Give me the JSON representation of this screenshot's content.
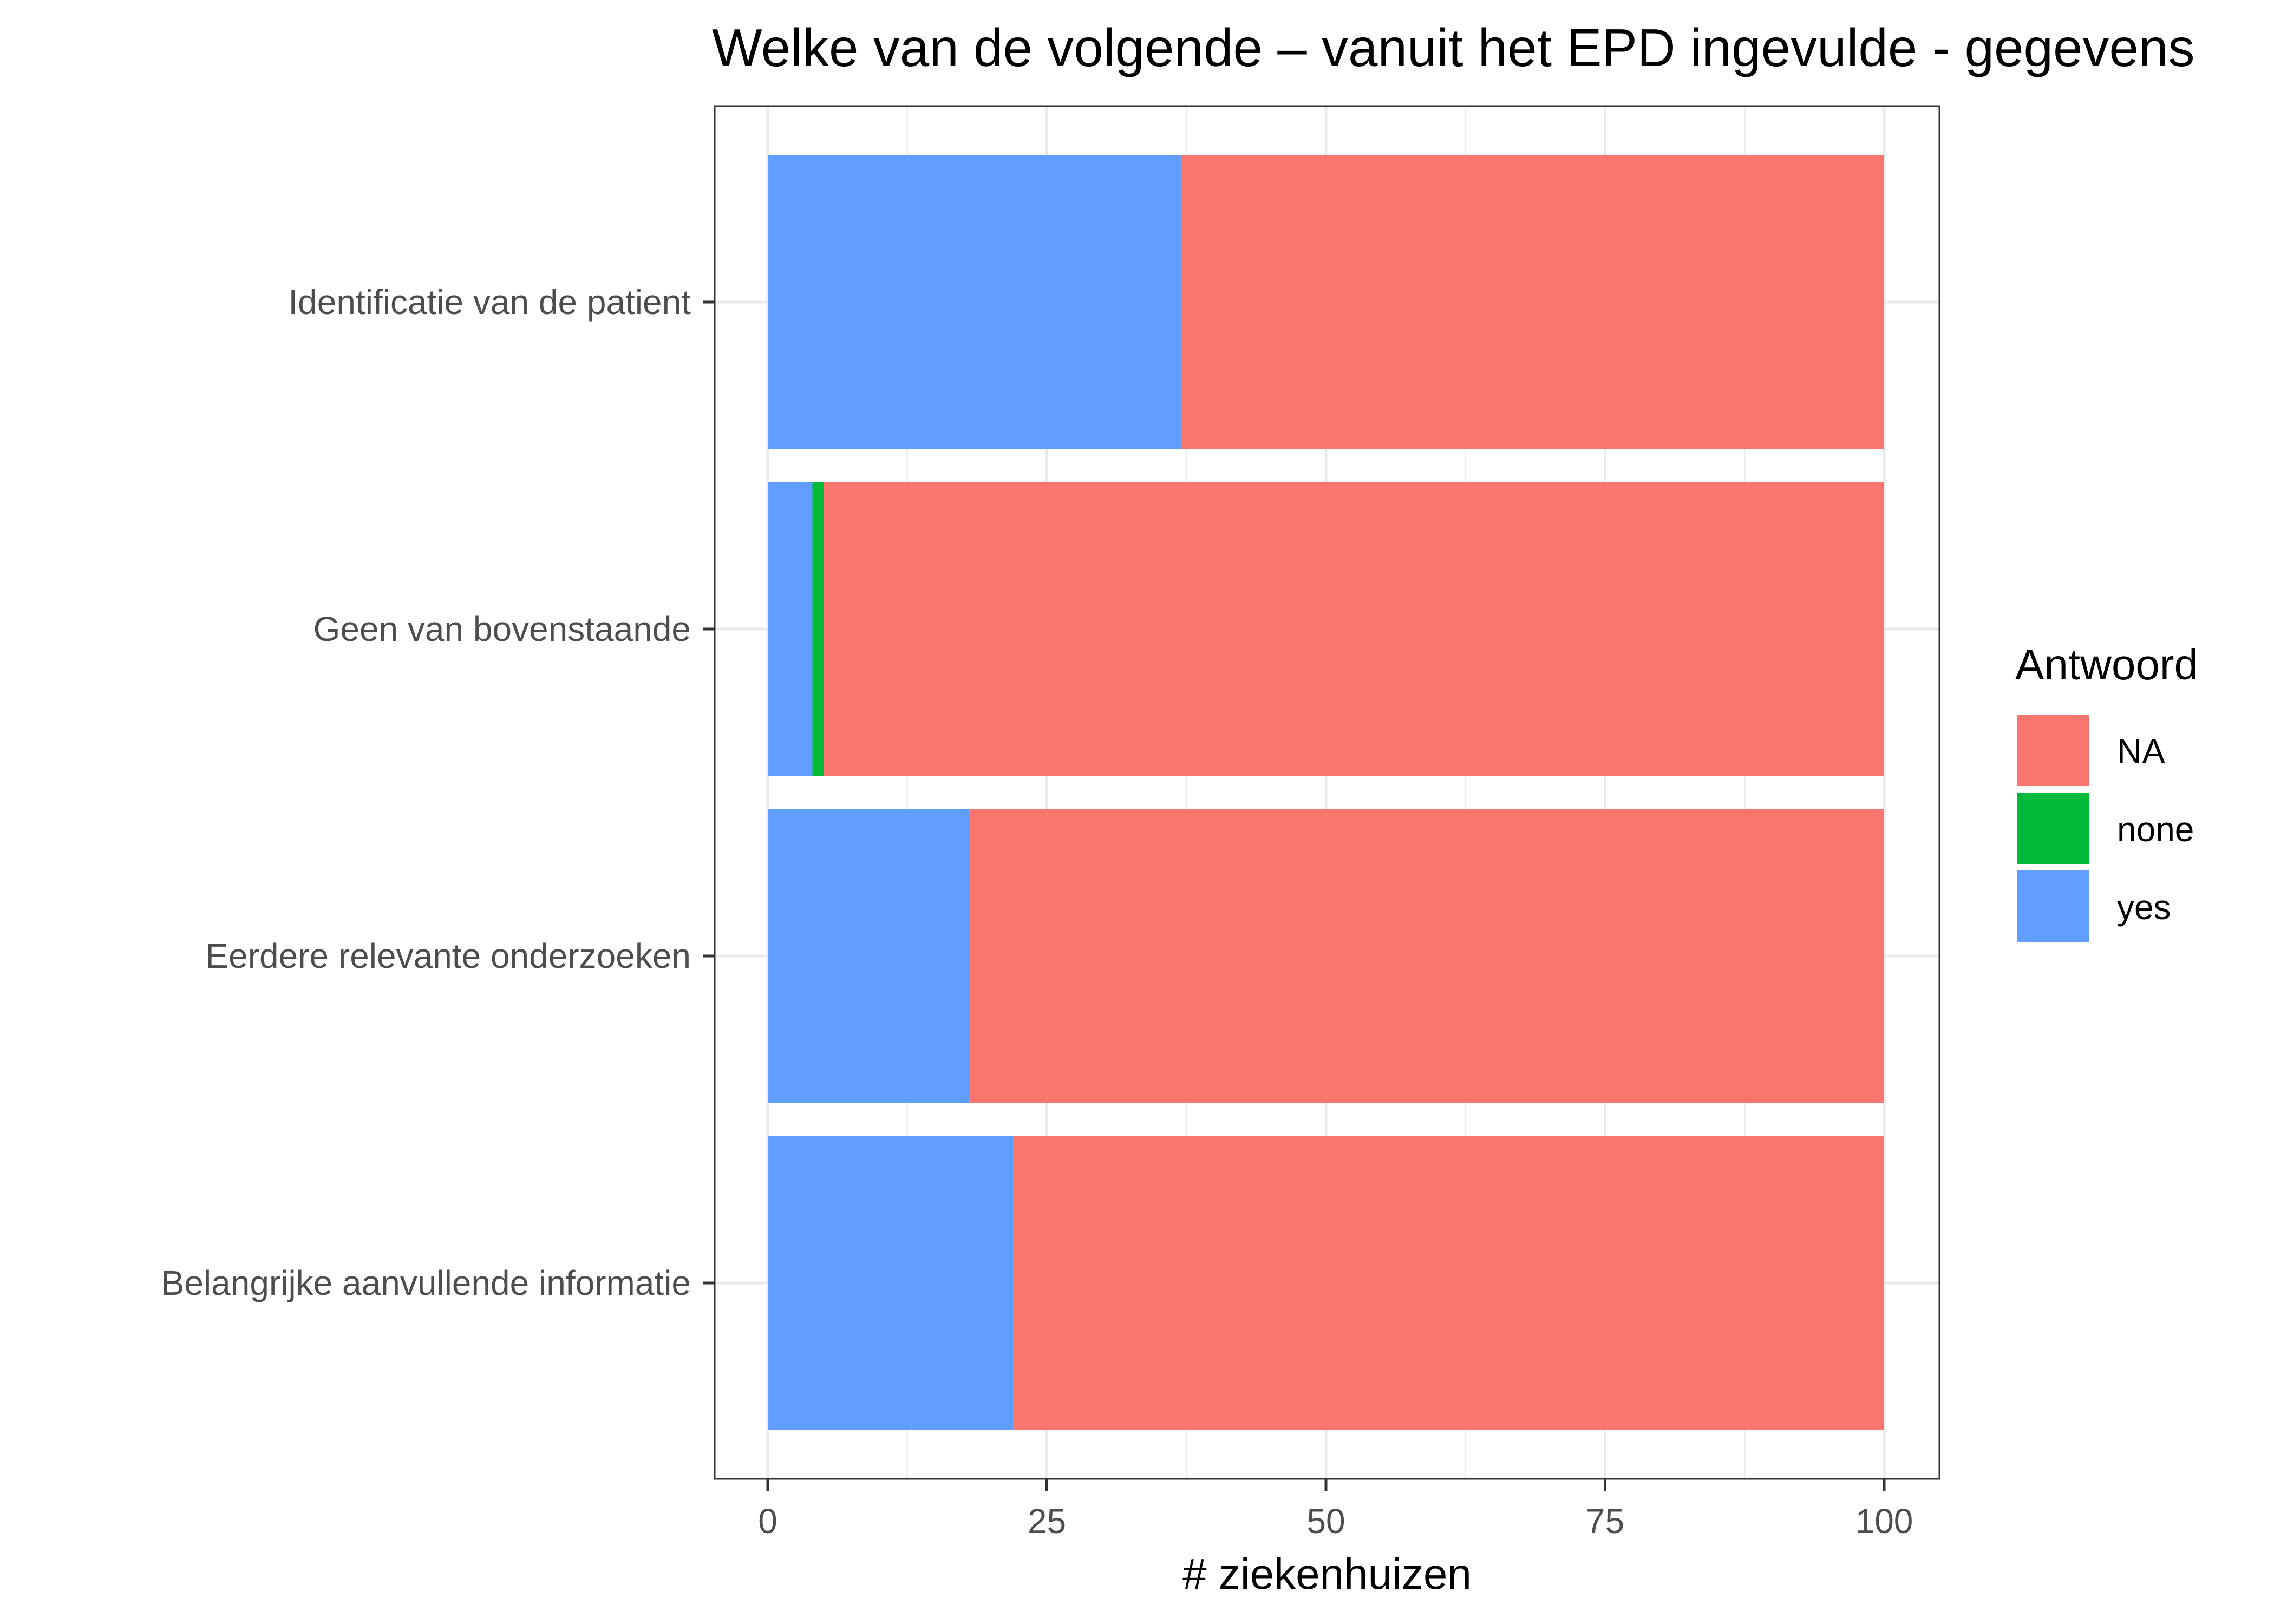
{
  "chart_data": {
    "type": "bar",
    "orientation": "horizontal",
    "stacked": true,
    "title": "Welke van de volgende – vanuit het EPD ingevulde - gegevens",
    "xlabel": "# ziekenhuizen",
    "ylabel": "",
    "xlim": [
      0,
      100
    ],
    "xticks": [
      "0",
      "25",
      "50",
      "75",
      "100"
    ],
    "grid": true,
    "categories": [
      "Identificatie van de patient",
      "Geen van bovenstaande",
      "Eerdere relevante onderzoeken",
      "Belangrijke aanvullende informatie"
    ],
    "series": [
      {
        "name": "yes",
        "color": "#619CFF",
        "values": [
          37,
          4,
          18,
          22
        ]
      },
      {
        "name": "none",
        "color": "#00BA38",
        "values": [
          0,
          1,
          0,
          0
        ]
      },
      {
        "name": "NA",
        "color": "#F8766D",
        "values": [
          63,
          95,
          82,
          78
        ]
      }
    ],
    "legend": {
      "title": "Antwoord",
      "position": "right",
      "entries": [
        {
          "name": "NA",
          "color": "#F8766D"
        },
        {
          "name": "none",
          "color": "#00BA38"
        },
        {
          "name": "yes",
          "color": "#619CFF"
        }
      ]
    }
  }
}
